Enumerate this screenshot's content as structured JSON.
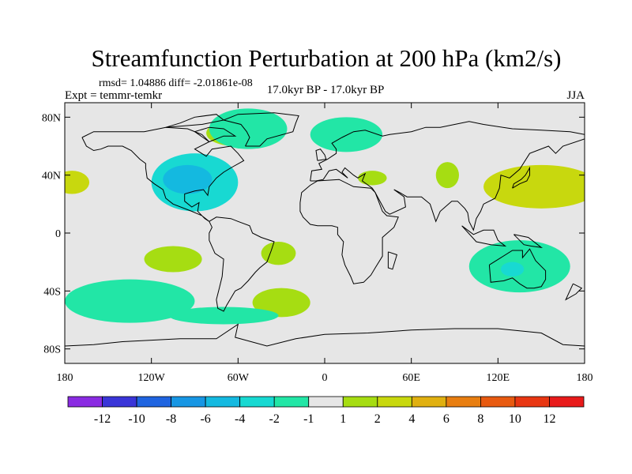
{
  "chart_data": {
    "type": "heatmap",
    "title": "Streamfunction Perturbation at 200 hPa (km2/s)",
    "stats_text": "rmsd= 1.04886 diff= -2.01861e-08",
    "left_label": "Expt = temmr-temkr",
    "center_label": "17.0kyr BP - 17.0kyr BP",
    "right_label": "JJA",
    "x_axis": {
      "range": [
        -180,
        180
      ],
      "ticks": [
        -180,
        -120,
        -60,
        0,
        60,
        120,
        180
      ],
      "tick_labels": [
        "180",
        "120W",
        "60W",
        "0",
        "60E",
        "120E",
        "180"
      ]
    },
    "y_axis": {
      "range": [
        -90,
        90
      ],
      "ticks": [
        80,
        40,
        0,
        -40,
        -80
      ],
      "tick_labels": [
        "80N",
        "40N",
        "0",
        "40S",
        "80S"
      ]
    },
    "colorbar": {
      "labels": [
        "-12",
        "-10",
        "-8",
        "-6",
        "-4",
        "-2",
        "-1",
        "1",
        "2",
        "4",
        "6",
        "8",
        "10",
        "12"
      ],
      "colors": [
        "#8a2be2",
        "#3a35d8",
        "#1f64e0",
        "#1796e4",
        "#14b9e0",
        "#18d9d2",
        "#22e6a6",
        "#e6e6e6",
        "#a6dd12",
        "#c8d80e",
        "#e0b010",
        "#e87e10",
        "#e85a10",
        "#e83612",
        "#e81a1a"
      ]
    },
    "regions": [
      {
        "name": "north-america-negative",
        "lon": -90,
        "lat": 35,
        "rx": 30,
        "ry": 20,
        "level": "-2"
      },
      {
        "name": "north-america-core",
        "lon": -95,
        "lat": 37,
        "rx": 17,
        "ry": 10,
        "level": "-4"
      },
      {
        "name": "greenland-positive",
        "lon": -62,
        "lat": 69,
        "rx": 20,
        "ry": 9,
        "level": "1"
      },
      {
        "name": "north-atlantic-negative",
        "lon": -53,
        "lat": 72,
        "rx": 27,
        "ry": 14,
        "level": "-1"
      },
      {
        "name": "scandinavia-negative",
        "lon": 15,
        "lat": 68,
        "rx": 25,
        "ry": 12,
        "level": "-1"
      },
      {
        "name": "central-asia-positive",
        "lon": 85,
        "lat": 40,
        "rx": 8,
        "ry": 9,
        "level": "1"
      },
      {
        "name": "europe-positive",
        "lon": 33,
        "lat": 38,
        "rx": 10,
        "ry": 5,
        "level": "1"
      },
      {
        "name": "west-pacific-positive",
        "lon": 150,
        "lat": 32,
        "rx": 40,
        "ry": 15,
        "level": "2"
      },
      {
        "name": "australia-negative",
        "lon": 135,
        "lat": -23,
        "rx": 35,
        "ry": 18,
        "level": "-1"
      },
      {
        "name": "australia-core",
        "lon": 130,
        "lat": -25,
        "rx": 8,
        "ry": 5,
        "level": "-2"
      },
      {
        "name": "south-pacific-positive",
        "lon": -105,
        "lat": -18,
        "rx": 20,
        "ry": 9,
        "level": "1"
      },
      {
        "name": "south-atlantic-positive",
        "lon": -32,
        "lat": -14,
        "rx": 12,
        "ry": 8,
        "level": "1"
      },
      {
        "name": "south-pacific-negative",
        "lon": -135,
        "lat": -47,
        "rx": 45,
        "ry": 15,
        "level": "-1"
      },
      {
        "name": "south-atlantic-positive-2",
        "lon": -30,
        "lat": -48,
        "rx": 20,
        "ry": 10,
        "level": "1"
      },
      {
        "name": "southern-ocean-negative",
        "lon": -70,
        "lat": -57,
        "rx": 38,
        "ry": 6,
        "level": "-1"
      },
      {
        "name": "dateline-positive-north",
        "lon": -175,
        "lat": 35,
        "rx": 12,
        "ry": 8,
        "level": "2"
      }
    ]
  }
}
